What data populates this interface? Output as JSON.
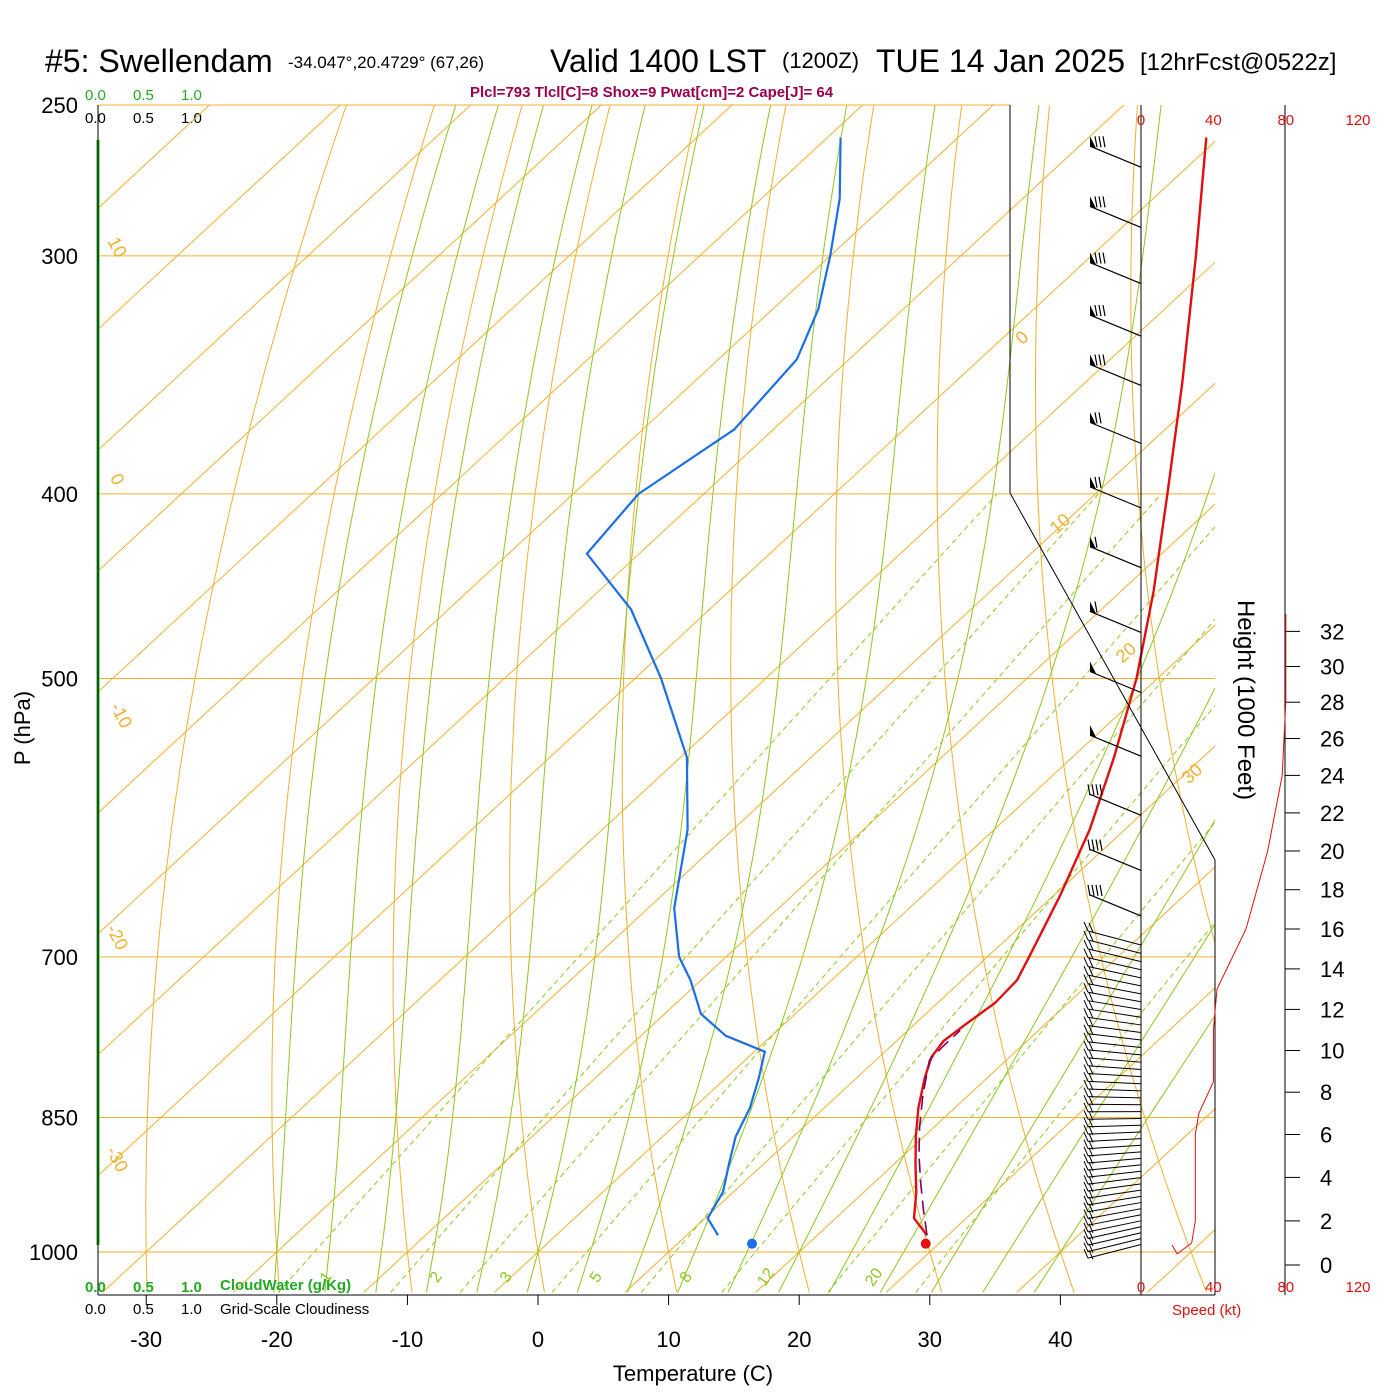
{
  "header": {
    "station": "#5: Swellendam",
    "coords": "-34.047°,20.4729° (67,26)",
    "valid": "Valid 1400 LST",
    "utc": "(1200Z)",
    "date": "TUE 14 Jan 2025",
    "forecast": "[12hrFcst@0522z]",
    "params": "Plcl=793 Tlcl[C]=8 Shox=9 Pwat[cm]=2 Cape[J]= 64"
  },
  "colors": {
    "temperature": "#e01010",
    "dewpoint": "#1a6ee8",
    "parcel": "#800060",
    "isotherm": "#f0b030",
    "adiabat": "#8cc820",
    "cloudwater": "#22aa22",
    "params": "#99004d"
  },
  "chart_data": {
    "type": "skew-t",
    "xlabel": "Temperature (C)",
    "ylabel": "P (hPa)",
    "right_axis_label": "Height (1000 Feet)",
    "x_ticks": [
      -30,
      -20,
      -10,
      0,
      10,
      20,
      30,
      40
    ],
    "pressure_ticks": [
      250,
      300,
      400,
      500,
      700,
      850,
      1000
    ],
    "height_ticks": [
      0,
      2,
      4,
      6,
      8,
      10,
      12,
      14,
      16,
      18,
      20,
      22,
      24,
      26,
      28,
      30,
      32
    ],
    "speed_ticks": [
      0,
      40,
      80,
      120
    ],
    "speed_label": "Speed (kt)",
    "cloud_scale": [
      "0.0",
      "0.5",
      "1.0"
    ],
    "cloudwater_label": "CloudWater (g/Kg)",
    "cloudiness_label": "Grid-Scale Cloudiness",
    "isotherm_labels": [
      "10",
      "0",
      "-10",
      "-20",
      "-30",
      "0",
      "10",
      "20",
      "30"
    ],
    "mixing_ratio_labels": [
      "1",
      "2",
      "3",
      "5",
      "8",
      "12",
      "20"
    ],
    "temperature": [
      {
        "p": 980,
        "t": 28.4
      },
      {
        "p": 960,
        "t": 26.0
      },
      {
        "p": 930,
        "t": 24.0
      },
      {
        "p": 900,
        "t": 21.7
      },
      {
        "p": 870,
        "t": 19.4
      },
      {
        "p": 840,
        "t": 17.2
      },
      {
        "p": 810,
        "t": 15.2
      },
      {
        "p": 790,
        "t": 14.0
      },
      {
        "p": 775,
        "t": 13.6
      },
      {
        "p": 760,
        "t": 13.9
      },
      {
        "p": 740,
        "t": 14.4
      },
      {
        "p": 720,
        "t": 14.2
      },
      {
        "p": 700,
        "t": 13.2
      },
      {
        "p": 650,
        "t": 10.5
      },
      {
        "p": 600,
        "t": 7.3
      },
      {
        "p": 550,
        "t": 3.2
      },
      {
        "p": 500,
        "t": -1.6
      },
      {
        "p": 450,
        "t": -7.5
      },
      {
        "p": 400,
        "t": -14.5
      },
      {
        "p": 350,
        "t": -22.5
      },
      {
        "p": 300,
        "t": -32.0
      },
      {
        "p": 260,
        "t": -41.0
      }
    ],
    "dewpoint": [
      {
        "p": 980,
        "t": 12.4
      },
      {
        "p": 960,
        "t": 10.2
      },
      {
        "p": 930,
        "t": 9.2
      },
      {
        "p": 900,
        "t": 7.4
      },
      {
        "p": 870,
        "t": 5.6
      },
      {
        "p": 840,
        "t": 4.3
      },
      {
        "p": 810,
        "t": 2.5
      },
      {
        "p": 785,
        "t": 0.8
      },
      {
        "p": 770,
        "t": -3.5
      },
      {
        "p": 750,
        "t": -7.2
      },
      {
        "p": 720,
        "t": -10.8
      },
      {
        "p": 700,
        "t": -13.6
      },
      {
        "p": 660,
        "t": -18.0
      },
      {
        "p": 600,
        "t": -23.5
      },
      {
        "p": 550,
        "t": -29.5
      },
      {
        "p": 500,
        "t": -38.0
      },
      {
        "p": 460,
        "t": -46.0
      },
      {
        "p": 430,
        "t": -54.0
      },
      {
        "p": 400,
        "t": -55.0
      },
      {
        "p": 370,
        "t": -53.0
      },
      {
        "p": 340,
        "t": -54.0
      },
      {
        "p": 320,
        "t": -56.5
      },
      {
        "p": 300,
        "t": -60.0
      },
      {
        "p": 280,
        "t": -64.0
      },
      {
        "p": 260,
        "t": -69.0
      }
    ],
    "parcel": [
      {
        "p": 980,
        "t": 28.4
      },
      {
        "p": 950,
        "t": 26.0
      },
      {
        "p": 920,
        "t": 23.6
      },
      {
        "p": 890,
        "t": 21.2
      },
      {
        "p": 860,
        "t": 18.9
      },
      {
        "p": 830,
        "t": 16.7
      },
      {
        "p": 810,
        "t": 15.3
      },
      {
        "p": 793,
        "t": 14.1
      },
      {
        "p": 780,
        "t": 14.0
      },
      {
        "p": 765,
        "t": 14.0
      }
    ],
    "surface_temperature": {
      "p": 990,
      "t": 29.0
    },
    "surface_dewpoint": {
      "p": 990,
      "t": 15.7
    },
    "wind_speed_profile": [
      {
        "height_kft": 0.5,
        "speed_kt": 20
      },
      {
        "height_kft": 1.0,
        "speed_kt": 28
      },
      {
        "height_kft": 2.0,
        "speed_kt": 30
      },
      {
        "height_kft": 4.0,
        "speed_kt": 30
      },
      {
        "height_kft": 6.0,
        "speed_kt": 30
      },
      {
        "height_kft": 7.0,
        "speed_kt": 32
      },
      {
        "height_kft": 8.5,
        "speed_kt": 40
      },
      {
        "height_kft": 11.0,
        "speed_kt": 40
      },
      {
        "height_kft": 13.0,
        "speed_kt": 42
      },
      {
        "height_kft": 16.0,
        "speed_kt": 58
      },
      {
        "height_kft": 20.0,
        "speed_kt": 70
      },
      {
        "height_kft": 24.0,
        "speed_kt": 78
      },
      {
        "height_kft": 28.0,
        "speed_kt": 80
      },
      {
        "height_kft": 30.0,
        "speed_kt": 80
      },
      {
        "height_kft": 33.0,
        "speed_kt": 80
      }
    ],
    "wind_barb_levels": [
      {
        "p": 265,
        "pennants": 1,
        "barbs": 3
      },
      {
        "p": 285,
        "pennants": 1,
        "barbs": 3
      },
      {
        "p": 305,
        "pennants": 1,
        "barbs": 3
      },
      {
        "p": 325,
        "pennants": 1,
        "barbs": 3
      },
      {
        "p": 345,
        "pennants": 1,
        "barbs": 3
      },
      {
        "p": 370,
        "pennants": 1,
        "barbs": 2
      },
      {
        "p": 400,
        "pennants": 1,
        "barbs": 2
      },
      {
        "p": 430,
        "pennants": 1,
        "barbs": 1
      },
      {
        "p": 465,
        "pennants": 1,
        "barbs": 1
      },
      {
        "p": 500,
        "pennants": 1,
        "barbs": 0
      },
      {
        "p": 540,
        "pennants": 1,
        "barbs": 0
      },
      {
        "p": 580,
        "pennants": 0,
        "barbs": 4
      },
      {
        "p": 620,
        "pennants": 0,
        "barbs": 4
      },
      {
        "p": 655,
        "pennants": 0,
        "barbs": 4
      }
    ]
  }
}
